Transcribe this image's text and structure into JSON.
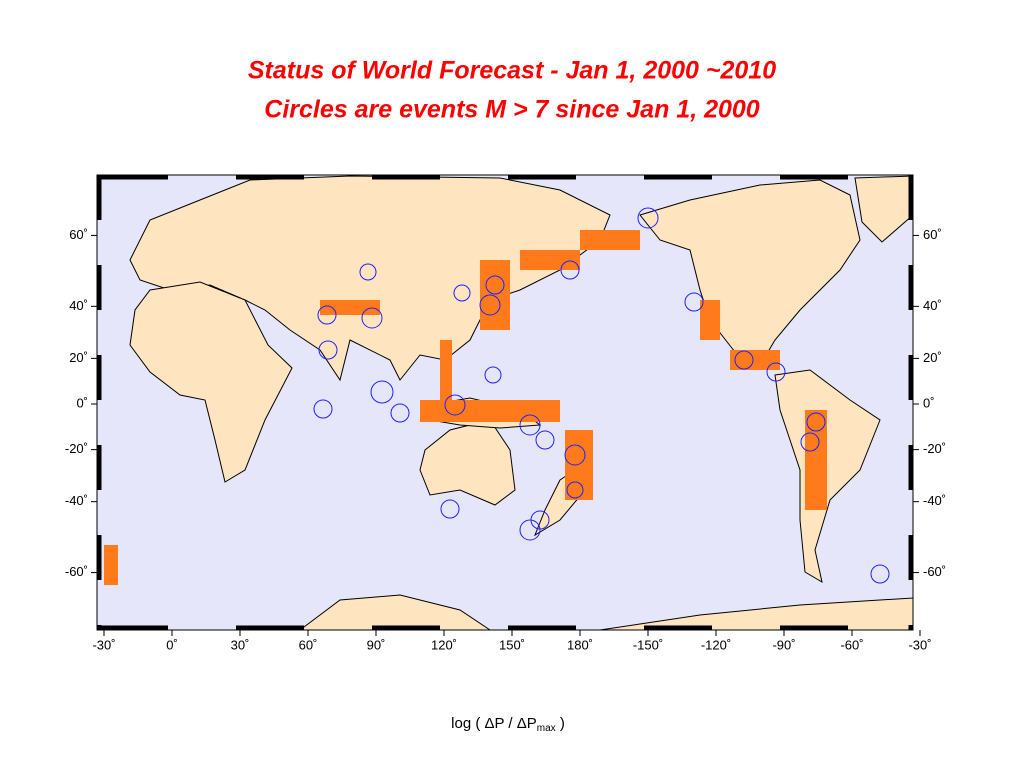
{
  "map": {
    "title": "Status of World Forecast - Jan 1, 2000 ~2010",
    "subtitle": "Circles are events M > 7 since Jan 1, 2000",
    "lon_ticks": [
      {
        "value": -30,
        "label": "-30˚"
      },
      {
        "value": 0,
        "label": "0˚"
      },
      {
        "value": 30,
        "label": "30˚"
      },
      {
        "value": 60,
        "label": "60˚"
      },
      {
        "value": 90,
        "label": "90˚"
      },
      {
        "value": 120,
        "label": "120˚"
      },
      {
        "value": 150,
        "label": "150˚"
      },
      {
        "value": 180,
        "label": "180˚"
      },
      {
        "value": 210,
        "label": "-150˚"
      },
      {
        "value": 240,
        "label": "-120˚"
      },
      {
        "value": 270,
        "label": "-90˚"
      },
      {
        "value": 300,
        "label": "-60˚"
      },
      {
        "value": 330,
        "label": "-30˚"
      }
    ],
    "lat_ticks": [
      {
        "value": 60,
        "label": "60˚"
      },
      {
        "value": 40,
        "label": "40˚"
      },
      {
        "value": 20,
        "label": "20˚"
      },
      {
        "value": 0,
        "label": "0˚"
      },
      {
        "value": -20,
        "label": "-20˚"
      },
      {
        "value": -40,
        "label": "-40˚"
      },
      {
        "value": -60,
        "label": "-60˚"
      }
    ],
    "colorbar_label": {
      "text": "log ( ΔP / ΔP",
      "sub": "max",
      "end": " )"
    }
  }
}
